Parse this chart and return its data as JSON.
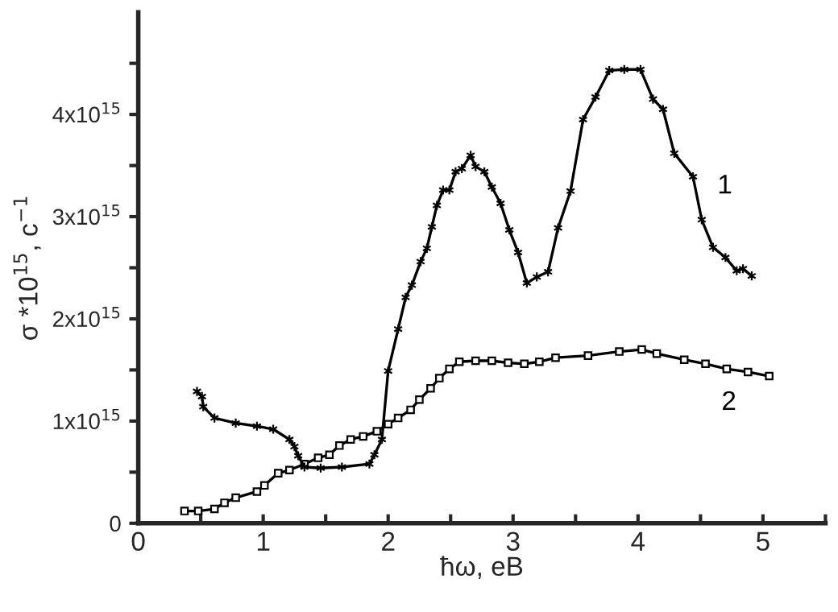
{
  "chart_data": {
    "type": "line",
    "xlabel": "ħω, eB",
    "ylabel": "σ *10$^{15}$, c$^{−1}$",
    "xlim": [
      0,
      5.5
    ],
    "ylim": [
      0,
      5000000000000000.0
    ],
    "xticks": [
      0,
      {
        "value": 0.5,
        "label": null
      },
      1,
      {
        "value": 1.5,
        "label": null
      },
      2,
      {
        "value": 2.5,
        "label": null
      },
      3,
      {
        "value": 3.5,
        "label": null
      },
      4,
      {
        "value": 4.5,
        "label": null
      },
      5,
      {
        "value": 5.5,
        "label": null
      }
    ],
    "yticks": [
      0,
      {
        "value": 500000000000000.0,
        "label": null
      },
      {
        "value": 1000000000000000.0,
        "label": "1x10$^{15}$"
      },
      {
        "value": 1500000000000000.0,
        "label": null
      },
      {
        "value": 2000000000000000.0,
        "label": "2x10$^{15}$"
      },
      {
        "value": 2500000000000000.0,
        "label": null
      },
      {
        "value": 3000000000000000.0,
        "label": "3x10$^{15}$"
      },
      {
        "value": 3500000000000000.0,
        "label": null
      },
      {
        "value": 4000000000000000.0,
        "label": "4x10$^{15}$"
      },
      {
        "value": 4500000000000000.0,
        "label": null
      }
    ],
    "grid": false,
    "legend": false,
    "series": [
      {
        "name": "1",
        "color": "#000000",
        "marker": "cross",
        "line_style": "solid",
        "x": [
          0.47,
          0.51,
          0.52,
          0.61,
          0.78,
          0.95,
          1.08,
          1.21,
          1.25,
          1.28,
          1.33,
          1.46,
          1.63,
          1.85,
          1.89,
          1.95,
          2.0,
          2.08,
          2.14,
          2.19,
          2.26,
          2.31,
          2.35,
          2.39,
          2.44,
          2.49,
          2.54,
          2.59,
          2.66,
          2.7,
          2.77,
          2.83,
          2.9,
          2.97,
          3.04,
          3.11,
          3.19,
          3.28,
          3.36,
          3.46,
          3.56,
          3.66,
          3.77,
          3.89,
          4.02,
          4.12,
          4.2,
          4.29,
          4.44,
          4.51,
          4.6,
          4.7,
          4.79,
          4.84,
          4.91
        ],
        "values": [
          1290000000000000.0,
          1240000000000000.0,
          1140000000000000.0,
          1030000000000000.0,
          980000000000000.0,
          950000000000000.0,
          920000000000000.0,
          820000000000000.0,
          750000000000000.0,
          660000000000000.0,
          550000000000000.0,
          540000000000000.0,
          550000000000000.0,
          580000000000000.0,
          670000000000000.0,
          820000000000000.0,
          1490000000000000.0,
          1900000000000000.0,
          2210000000000000.0,
          2330000000000000.0,
          2560000000000000.0,
          2690000000000000.0,
          2900000000000000.0,
          3110000000000000.0,
          3260000000000000.0,
          3260000000000000.0,
          3440000000000000.0,
          3470000000000000.0,
          3600000000000000.0,
          3490000000000000.0,
          3440000000000000.0,
          3290000000000000.0,
          3130000000000000.0,
          2870000000000000.0,
          2650000000000000.0,
          2350000000000000.0,
          2410000000000000.0,
          2460000000000000.0,
          2890000000000000.0,
          3250000000000000.0,
          3950000000000000.0,
          4170000000000000.0,
          4430000000000000.0,
          4440000000000000.0,
          4440000000000000.0,
          4150000000000000.0,
          4050000000000000.0,
          3620000000000000.0,
          3390000000000000.0,
          2970000000000000.0,
          2700000000000000.0,
          2600000000000000.0,
          2470000000000000.0,
          2490000000000000.0,
          2420000000000000.0
        ]
      },
      {
        "name": "2",
        "color": "#000000",
        "marker": "square",
        "line_style": "solid",
        "x": [
          0.37,
          0.48,
          0.61,
          0.69,
          0.78,
          0.95,
          1.01,
          1.12,
          1.21,
          1.33,
          1.44,
          1.53,
          1.61,
          1.7,
          1.8,
          1.91,
          2.0,
          2.08,
          2.18,
          2.25,
          2.34,
          2.41,
          2.49,
          2.57,
          2.7,
          2.83,
          2.96,
          3.09,
          3.21,
          3.34,
          3.6,
          3.85,
          4.03,
          4.15,
          4.37,
          4.54,
          4.71,
          4.88,
          5.05
        ],
        "values": [
          120000000000000.0,
          120000000000000.0,
          140000000000000.0,
          200000000000000.0,
          250000000000000.0,
          310000000000000.0,
          370000000000000.0,
          490000000000000.0,
          520000000000000.0,
          580000000000000.0,
          640000000000000.0,
          670000000000000.0,
          760000000000000.0,
          820000000000000.0,
          850000000000000.0,
          900000000000000.0,
          970000000000000.0,
          1030000000000000.0,
          1110000000000000.0,
          1210000000000000.0,
          1320000000000000.0,
          1420000000000000.0,
          1510000000000000.0,
          1580000000000000.0,
          1590000000000000.0,
          1590000000000000.0,
          1570000000000000.0,
          1560000000000000.0,
          1580000000000000.0,
          1620000000000000.0,
          1640000000000000.0,
          1680000000000000.0,
          1700000000000000.0,
          1660000000000000.0,
          1600000000000000.0,
          1560000000000000.0,
          1510000000000000.0,
          1480000000000000.0,
          1440000000000000.0
        ]
      }
    ]
  }
}
